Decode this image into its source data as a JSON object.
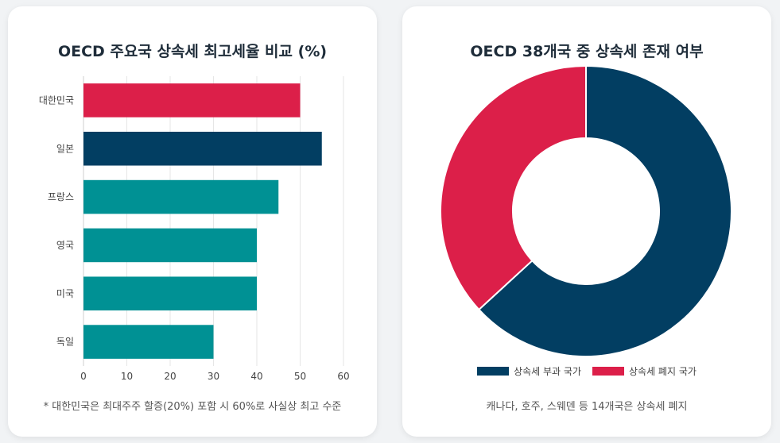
{
  "left": {
    "title": "OECD 주요국 상속세 최고세율 비교 (%)",
    "footnote": "* 대한민국은 최대주주 할증(20%) 포함 시 60%로 사실상 최고 수준"
  },
  "right": {
    "title": "OECD 38개국 중 상속세 존재 여부",
    "footnote": "캐나다, 호주, 스웨덴 등 14개국은 상속세 폐지"
  },
  "chart_data": [
    {
      "type": "bar",
      "orientation": "horizontal",
      "title": "OECD 주요국 상속세 최고세율 비교 (%)",
      "categories": [
        "대한민국",
        "일본",
        "프랑스",
        "영국",
        "미국",
        "독일"
      ],
      "values": [
        50,
        55,
        45,
        40,
        40,
        30
      ],
      "colors": [
        "#dc1f49",
        "#023e62",
        "#009194",
        "#009194",
        "#009194",
        "#009194"
      ],
      "xlim": [
        0,
        60
      ],
      "xticks": [
        0,
        10,
        20,
        30,
        40,
        50,
        60
      ],
      "grid": true
    },
    {
      "type": "pie",
      "donut": true,
      "title": "OECD 38개국 중 상속세 존재 여부",
      "labels": [
        "상속세 부과 국가",
        "상속세 폐지 국가"
      ],
      "values": [
        24,
        14
      ],
      "colors": [
        "#023e62",
        "#dc1f49"
      ],
      "legend": "bottom"
    }
  ]
}
